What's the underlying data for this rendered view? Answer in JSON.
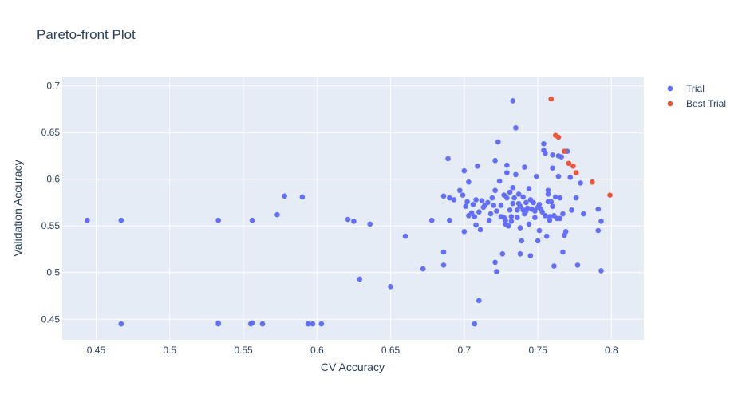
{
  "chart_data": {
    "type": "scatter",
    "title": "Pareto-front Plot",
    "xlabel": "CV Accuracy",
    "ylabel": "Validation Accuracy",
    "xlim": [
      0.427,
      0.822
    ],
    "ylim": [
      0.428,
      0.71
    ],
    "xticks": [
      0.45,
      0.5,
      0.55,
      0.6,
      0.65,
      0.7,
      0.75,
      0.8
    ],
    "yticks": [
      0.45,
      0.5,
      0.55,
      0.6,
      0.65,
      0.7
    ],
    "grid": true,
    "legend_position": "right",
    "colors": {
      "plot_bg": "#e5ecf6",
      "grid": "#ffffff",
      "trial": "#636efa",
      "best": "#ef553b"
    },
    "series": [
      {
        "name": "Trial",
        "color": "#636efa",
        "points": [
          [
            0.444,
            0.556
          ],
          [
            0.467,
            0.556
          ],
          [
            0.533,
            0.556
          ],
          [
            0.556,
            0.556
          ],
          [
            0.467,
            0.445
          ],
          [
            0.533,
            0.445
          ],
          [
            0.533,
            0.446
          ],
          [
            0.555,
            0.445
          ],
          [
            0.556,
            0.446
          ],
          [
            0.563,
            0.445
          ],
          [
            0.594,
            0.445
          ],
          [
            0.597,
            0.445
          ],
          [
            0.603,
            0.445
          ],
          [
            0.573,
            0.562
          ],
          [
            0.578,
            0.582
          ],
          [
            0.59,
            0.581
          ],
          [
            0.621,
            0.557
          ],
          [
            0.625,
            0.555
          ],
          [
            0.636,
            0.552
          ],
          [
            0.629,
            0.493
          ],
          [
            0.65,
            0.485
          ],
          [
            0.66,
            0.539
          ],
          [
            0.672,
            0.504
          ],
          [
            0.678,
            0.556
          ],
          [
            0.686,
            0.582
          ],
          [
            0.686,
            0.522
          ],
          [
            0.686,
            0.508
          ],
          [
            0.689,
            0.622
          ],
          [
            0.69,
            0.556
          ],
          [
            0.69,
            0.58
          ],
          [
            0.693,
            0.578
          ],
          [
            0.697,
            0.588
          ],
          [
            0.699,
            0.583
          ],
          [
            0.7,
            0.609
          ],
          [
            0.7,
            0.544
          ],
          [
            0.701,
            0.571
          ],
          [
            0.702,
            0.576
          ],
          [
            0.703,
            0.597
          ],
          [
            0.703,
            0.561
          ],
          [
            0.705,
            0.564
          ],
          [
            0.706,
            0.573
          ],
          [
            0.707,
            0.445
          ],
          [
            0.707,
            0.56
          ],
          [
            0.708,
            0.578
          ],
          [
            0.708,
            0.551
          ],
          [
            0.709,
            0.614
          ],
          [
            0.71,
            0.565
          ],
          [
            0.71,
            0.47
          ],
          [
            0.711,
            0.546
          ],
          [
            0.712,
            0.577
          ],
          [
            0.713,
            0.57
          ],
          [
            0.714,
            0.572
          ],
          [
            0.716,
            0.575
          ],
          [
            0.717,
            0.556
          ],
          [
            0.718,
            0.563
          ],
          [
            0.719,
            0.58
          ],
          [
            0.72,
            0.572
          ],
          [
            0.721,
            0.62
          ],
          [
            0.721,
            0.588
          ],
          [
            0.721,
            0.511
          ],
          [
            0.722,
            0.566
          ],
          [
            0.722,
            0.501
          ],
          [
            0.723,
            0.64
          ],
          [
            0.724,
            0.598
          ],
          [
            0.725,
            0.572
          ],
          [
            0.725,
            0.56
          ],
          [
            0.726,
            0.52
          ],
          [
            0.727,
            0.583
          ],
          [
            0.727,
            0.559
          ],
          [
            0.728,
            0.556
          ],
          [
            0.728,
            0.552
          ],
          [
            0.729,
            0.607
          ],
          [
            0.729,
            0.615
          ],
          [
            0.729,
            0.58
          ],
          [
            0.73,
            0.55
          ],
          [
            0.731,
            0.586
          ],
          [
            0.731,
            0.567
          ],
          [
            0.732,
            0.555
          ],
          [
            0.732,
            0.56
          ],
          [
            0.733,
            0.574
          ],
          [
            0.733,
            0.591
          ],
          [
            0.733,
            0.684
          ],
          [
            0.734,
            0.58
          ],
          [
            0.735,
            0.655
          ],
          [
            0.735,
            0.605
          ],
          [
            0.736,
            0.567
          ],
          [
            0.736,
            0.559
          ],
          [
            0.737,
            0.574
          ],
          [
            0.737,
            0.584
          ],
          [
            0.738,
            0.571
          ],
          [
            0.738,
            0.52
          ],
          [
            0.738,
            0.548
          ],
          [
            0.739,
            0.534
          ],
          [
            0.74,
            0.581
          ],
          [
            0.74,
            0.567
          ],
          [
            0.741,
            0.613
          ],
          [
            0.741,
            0.563
          ],
          [
            0.742,
            0.566
          ],
          [
            0.742,
            0.575
          ],
          [
            0.743,
            0.569
          ],
          [
            0.744,
            0.59
          ],
          [
            0.744,
            0.552
          ],
          [
            0.745,
            0.518
          ],
          [
            0.745,
            0.578
          ],
          [
            0.746,
            0.568
          ],
          [
            0.747,
            0.575
          ],
          [
            0.748,
            0.566
          ],
          [
            0.748,
            0.559
          ],
          [
            0.749,
            0.603
          ],
          [
            0.75,
            0.57
          ],
          [
            0.75,
            0.534
          ],
          [
            0.751,
            0.573
          ],
          [
            0.751,
            0.545
          ],
          [
            0.752,
            0.568
          ],
          [
            0.753,
            0.565
          ],
          [
            0.754,
            0.638
          ],
          [
            0.754,
            0.631
          ],
          [
            0.755,
            0.561
          ],
          [
            0.755,
            0.628
          ],
          [
            0.756,
            0.539
          ],
          [
            0.757,
            0.588
          ],
          [
            0.757,
            0.576
          ],
          [
            0.757,
            0.584
          ],
          [
            0.758,
            0.556
          ],
          [
            0.758,
            0.56
          ],
          [
            0.759,
            0.576
          ],
          [
            0.76,
            0.571
          ],
          [
            0.76,
            0.626
          ],
          [
            0.76,
            0.612
          ],
          [
            0.761,
            0.561
          ],
          [
            0.761,
            0.507
          ],
          [
            0.762,
            0.581
          ],
          [
            0.763,
            0.558
          ],
          [
            0.764,
            0.625
          ],
          [
            0.764,
            0.603
          ],
          [
            0.765,
            0.558
          ],
          [
            0.765,
            0.58
          ],
          [
            0.766,
            0.624
          ],
          [
            0.767,
            0.563
          ],
          [
            0.767,
            0.522
          ],
          [
            0.768,
            0.54
          ],
          [
            0.769,
            0.544
          ],
          [
            0.77,
            0.63
          ],
          [
            0.772,
            0.602
          ],
          [
            0.773,
            0.567
          ],
          [
            0.776,
            0.58
          ],
          [
            0.777,
            0.508
          ],
          [
            0.779,
            0.596
          ],
          [
            0.781,
            0.563
          ],
          [
            0.791,
            0.568
          ],
          [
            0.791,
            0.545
          ],
          [
            0.793,
            0.555
          ],
          [
            0.793,
            0.502
          ]
        ]
      },
      {
        "name": "Best Trial",
        "color": "#ef553b",
        "points": [
          [
            0.759,
            0.686
          ],
          [
            0.762,
            0.647
          ],
          [
            0.764,
            0.645
          ],
          [
            0.768,
            0.63
          ],
          [
            0.771,
            0.617
          ],
          [
            0.774,
            0.614
          ],
          [
            0.776,
            0.607
          ],
          [
            0.787,
            0.597
          ],
          [
            0.799,
            0.583
          ]
        ]
      }
    ]
  }
}
